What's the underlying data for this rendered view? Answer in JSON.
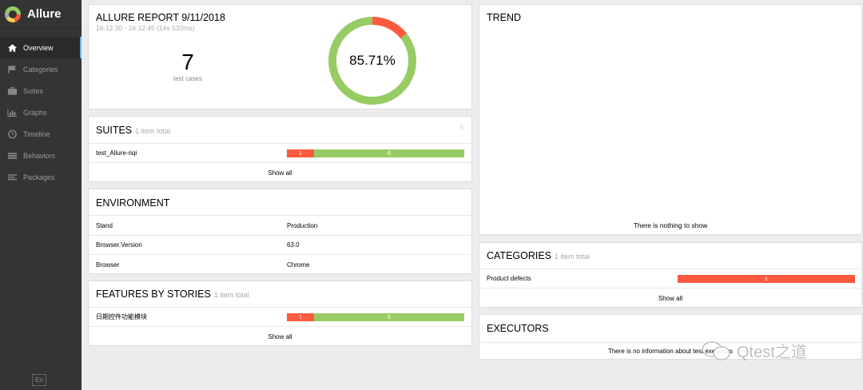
{
  "brand": {
    "name": "Allure"
  },
  "nav": [
    {
      "label": "Overview",
      "icon": "home-icon"
    },
    {
      "label": "Categories",
      "icon": "flag-icon"
    },
    {
      "label": "Suites",
      "icon": "briefcase-icon"
    },
    {
      "label": "Graphs",
      "icon": "bar-chart-icon"
    },
    {
      "label": "Timeline",
      "icon": "clock-icon"
    },
    {
      "label": "Behaviors",
      "icon": "list-icon"
    },
    {
      "label": "Packages",
      "icon": "align-left-icon"
    }
  ],
  "language": "En",
  "report": {
    "title": "ALLURE REPORT 9/11/2018",
    "time": "16:12:30 - 16:12:45 (14s 532ms)",
    "count": "7",
    "count_label": "test cases",
    "percent": "85.71%",
    "pass_fraction": 0.8571
  },
  "suites": {
    "title": "SUITES",
    "subtitle": "1 item total",
    "rows": [
      {
        "name": "test_Allure-riqi",
        "failed": "1",
        "passed": "6"
      }
    ],
    "show_all": "Show all"
  },
  "environment": {
    "title": "ENVIRONMENT",
    "rows": [
      {
        "key": "Stand",
        "value": "Production"
      },
      {
        "key": "Browser.Version",
        "value": "63.0"
      },
      {
        "key": "Browser",
        "value": "Chrome"
      }
    ]
  },
  "features": {
    "title": "FEATURES BY STORIES",
    "subtitle": "1 item total",
    "rows": [
      {
        "name": "日期控件功能模块",
        "failed": "1",
        "passed": "6"
      }
    ],
    "show_all": "Show all"
  },
  "trend": {
    "title": "TREND",
    "empty": "There is nothing to show"
  },
  "categories": {
    "title": "CATEGORIES",
    "subtitle": "1 item total",
    "rows": [
      {
        "name": "Product defects",
        "count": "1"
      }
    ],
    "show_all": "Show all"
  },
  "executors": {
    "title": "EXECUTORS",
    "empty": "There is no information about test executors"
  },
  "watermark": "Qtest之道",
  "colors": {
    "failed": "#fd5a3e",
    "passed": "#97cc64",
    "sidebar": "#343434",
    "accent": "#6db7e8"
  }
}
